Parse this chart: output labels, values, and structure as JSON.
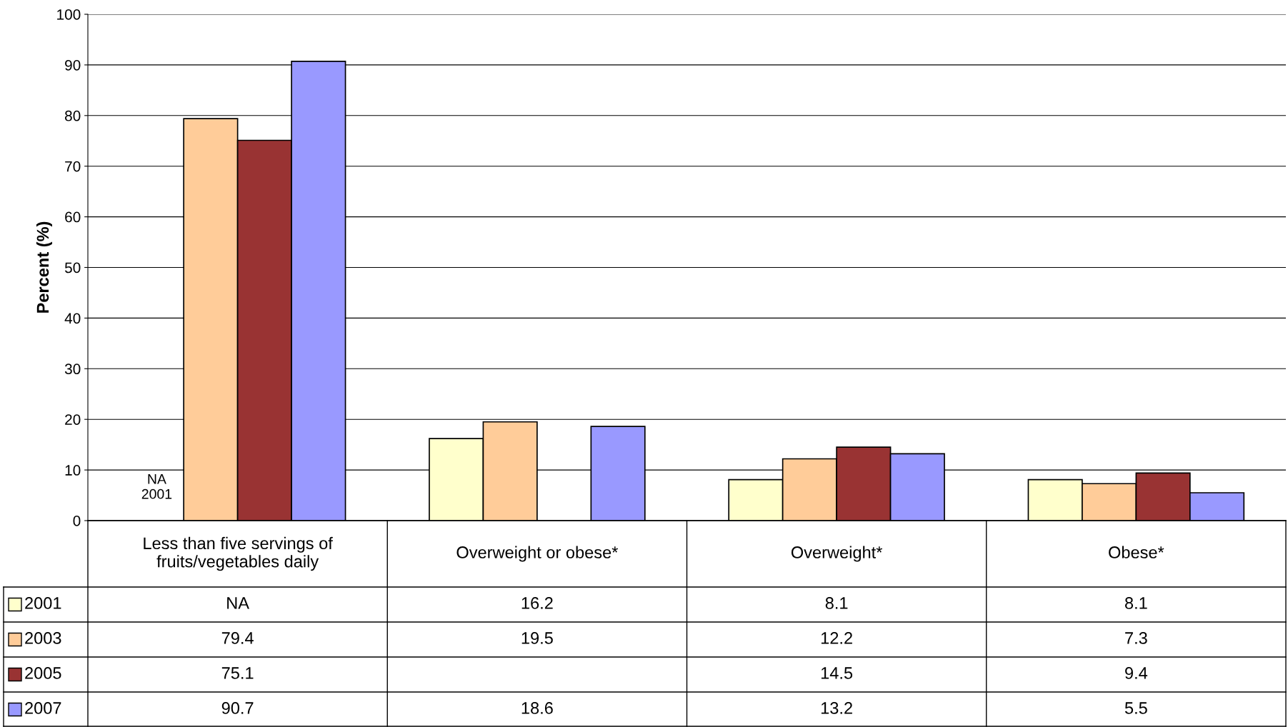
{
  "chart_data": {
    "type": "bar",
    "ylabel": "Percent (%)",
    "categories": [
      "Less than five servings of\nfruits/vegetables daily",
      "Overweight or obese*",
      "Overweight*",
      "Obese*"
    ],
    "series": [
      {
        "name": "2001",
        "color": "#ffffcc",
        "values": [
          null,
          16.2,
          8.1,
          8.1
        ],
        "value_labels": [
          "NA",
          "16.2",
          "8.1",
          "8.1"
        ]
      },
      {
        "name": "2003",
        "color": "#ffcc99",
        "values": [
          79.4,
          19.5,
          12.2,
          7.3
        ],
        "value_labels": [
          "79.4",
          "19.5",
          "12.2",
          "7.3"
        ]
      },
      {
        "name": "2005",
        "color": "#993333",
        "values": [
          75.1,
          null,
          14.5,
          9.4
        ],
        "value_labels": [
          "75.1",
          null,
          "14.5",
          "9.4"
        ]
      },
      {
        "name": "2007",
        "color": "#9999ff",
        "values": [
          90.7,
          18.6,
          13.2,
          5.5
        ],
        "value_labels": [
          "90.7",
          "18.6",
          "13.2",
          "5.5"
        ]
      }
    ],
    "annotations": [
      "NA\n2001"
    ],
    "legend": "bottom left",
    "ylim": [
      0,
      100
    ],
    "yticks": [
      0,
      10,
      20,
      30,
      40,
      50,
      60,
      70,
      80,
      90,
      100
    ],
    "grid": "y"
  }
}
